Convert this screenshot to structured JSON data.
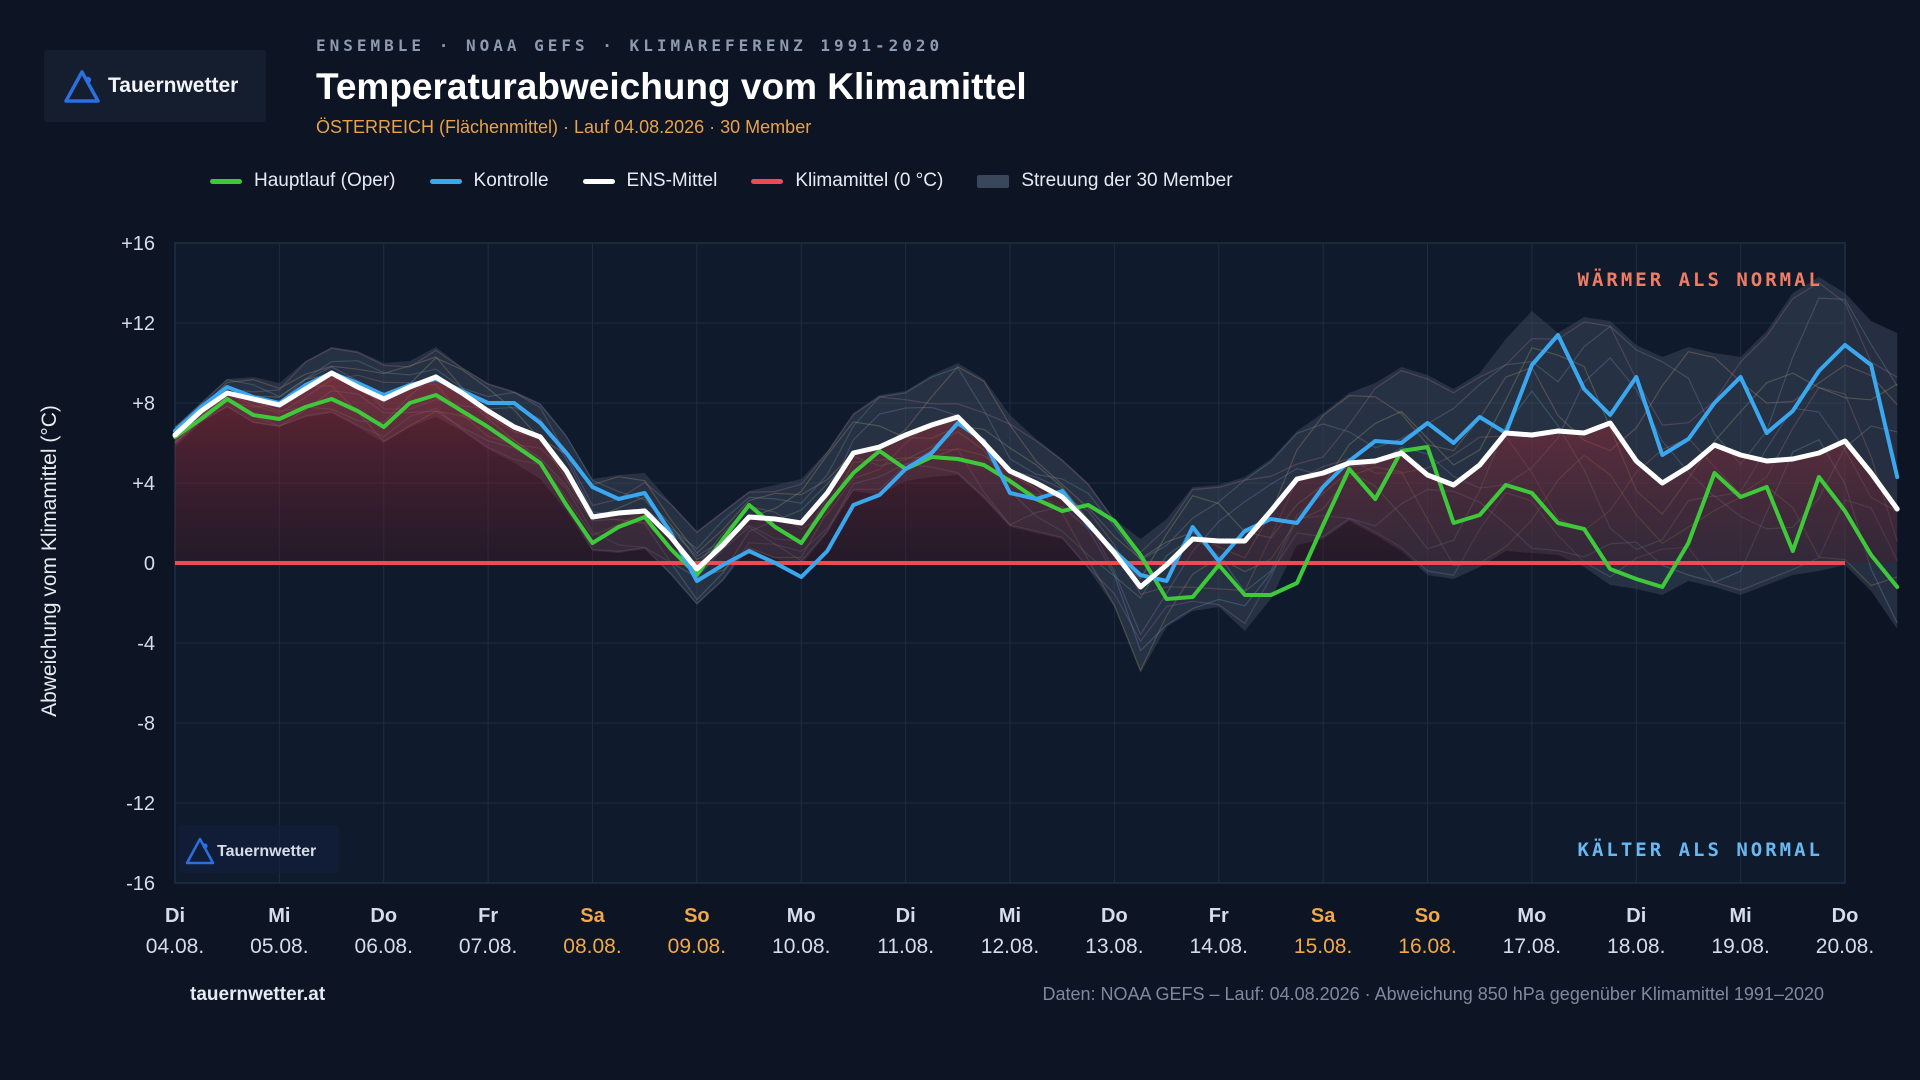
{
  "brand": {
    "name": "Tauernwetter",
    "url": "tauernwetter.at"
  },
  "header": {
    "kicker": "ENSEMBLE · NOAA GEFS · KLIMAREFERENZ 1991-2020",
    "title": "Temperaturabweichung vom Klimamittel",
    "meta": "ÖSTERREICH (Flächenmittel) · Lauf 04.08.2026 · 30 Member"
  },
  "legend": [
    {
      "label": "Hauptlauf (Oper)",
      "color": "#3ec93a"
    },
    {
      "label": "Kontrolle",
      "color": "#3aa7ee"
    },
    {
      "label": "ENS-Mittel",
      "color": "#ffffff"
    },
    {
      "label": "Klimamittel (0 °C)",
      "color": "#ee4a4f"
    },
    {
      "label": "Streuung der 30 Member",
      "color": "#3a465a"
    }
  ],
  "annotations": {
    "warm": "WÄRMER ALS NORMAL",
    "cold": "KÄLTER ALS NORMAL"
  },
  "footer": {
    "source": "Daten: NOAA GEFS – Lauf: 04.08.2026 · Abweichung 850 hPa gegenüber Klimamittel 1991–2020"
  },
  "chart_data": {
    "type": "line",
    "ylabel": "Abweichung vom Klimamittel (°C)",
    "ylim": [
      -16,
      16
    ],
    "yticks": [
      "+16",
      "+12",
      "+8",
      "+4",
      "0",
      "-4",
      "-8",
      "-12",
      "-16"
    ],
    "ytick_values": [
      16,
      12,
      8,
      4,
      0,
      -4,
      -8,
      -12,
      -16
    ],
    "days": [
      {
        "wd": "Di",
        "date": "04.08.",
        "weekend": false
      },
      {
        "wd": "Mi",
        "date": "05.08.",
        "weekend": false
      },
      {
        "wd": "Do",
        "date": "06.08.",
        "weekend": false
      },
      {
        "wd": "Fr",
        "date": "07.08.",
        "weekend": false
      },
      {
        "wd": "Sa",
        "date": "08.08.",
        "weekend": true
      },
      {
        "wd": "So",
        "date": "09.08.",
        "weekend": true
      },
      {
        "wd": "Mo",
        "date": "10.08.",
        "weekend": false
      },
      {
        "wd": "Di",
        "date": "11.08.",
        "weekend": false
      },
      {
        "wd": "Mi",
        "date": "12.08.",
        "weekend": false
      },
      {
        "wd": "Do",
        "date": "13.08.",
        "weekend": false
      },
      {
        "wd": "Fr",
        "date": "14.08.",
        "weekend": false
      },
      {
        "wd": "Sa",
        "date": "15.08.",
        "weekend": true
      },
      {
        "wd": "So",
        "date": "16.08.",
        "weekend": true
      },
      {
        "wd": "Mo",
        "date": "17.08.",
        "weekend": false
      },
      {
        "wd": "Di",
        "date": "18.08.",
        "weekend": false
      },
      {
        "wd": "Mi",
        "date": "19.08.",
        "weekend": false
      },
      {
        "wd": "Do",
        "date": "20.08.",
        "weekend": false
      }
    ],
    "x_step_days": 0.25,
    "series": [
      {
        "name": "Hauptlauf (Oper)",
        "color": "#3ec93a",
        "width": 4,
        "values": [
          6.3,
          7.2,
          8.2,
          7.4,
          7.2,
          7.8,
          8.2,
          7.6,
          6.8,
          8.0,
          8.4,
          7.6,
          6.8,
          5.9,
          5.0,
          2.9,
          1.0,
          1.8,
          2.3,
          0.7,
          -0.6,
          1.2,
          2.9,
          1.8,
          1.0,
          2.9,
          4.5,
          5.6,
          4.7,
          5.3,
          5.2,
          4.9,
          4.1,
          3.2,
          2.6,
          2.9,
          2.1,
          0.4,
          -1.8,
          -1.7,
          -0.1,
          -1.6,
          -1.6,
          -1.0,
          1.9,
          4.7,
          3.2,
          5.6,
          5.8,
          2.0,
          2.4,
          3.9,
          3.5,
          2.0,
          1.7,
          -0.3,
          -0.8,
          -1.2,
          1.0,
          4.5,
          3.3,
          3.8,
          0.6,
          4.3,
          2.6,
          0.4,
          -1.2
        ]
      },
      {
        "name": "Kontrolle",
        "color": "#3aa7ee",
        "width": 4,
        "values": [
          6.6,
          7.8,
          8.8,
          8.3,
          8.0,
          8.9,
          9.5,
          9.0,
          8.4,
          8.9,
          9.2,
          8.6,
          8.0,
          8.0,
          7.0,
          5.5,
          3.8,
          3.2,
          3.5,
          1.5,
          -0.9,
          -0.1,
          0.6,
          0.0,
          -0.7,
          0.6,
          2.9,
          3.4,
          4.7,
          5.5,
          7.0,
          6.1,
          3.5,
          3.2,
          3.6,
          1.9,
          0.6,
          -0.6,
          -0.9,
          1.8,
          0.1,
          1.6,
          2.2,
          2.0,
          3.8,
          5.1,
          6.1,
          6.0,
          7.0,
          6.0,
          7.3,
          6.5,
          9.9,
          11.4,
          8.7,
          7.4,
          9.3,
          5.4,
          6.2,
          8.0,
          9.3,
          6.5,
          7.6,
          9.6,
          10.9,
          9.9,
          4.3
        ]
      },
      {
        "name": "ENS-Mittel",
        "color": "#ffffff",
        "width": 5,
        "values": [
          6.4,
          7.6,
          8.5,
          8.2,
          7.9,
          8.7,
          9.5,
          8.8,
          8.2,
          8.8,
          9.3,
          8.5,
          7.6,
          6.8,
          6.3,
          4.6,
          2.3,
          2.5,
          2.6,
          1.3,
          -0.3,
          0.9,
          2.3,
          2.2,
          2.0,
          3.5,
          5.5,
          5.8,
          6.4,
          6.9,
          7.3,
          6.0,
          4.6,
          4.0,
          3.3,
          2.0,
          0.5,
          -1.2,
          -0.1,
          1.2,
          1.1,
          1.1,
          2.6,
          4.2,
          4.5,
          5.0,
          5.1,
          5.5,
          4.4,
          3.9,
          4.9,
          6.5,
          6.4,
          6.6,
          6.5,
          7.0,
          5.1,
          4.0,
          4.8,
          5.9,
          5.4,
          5.1,
          5.2,
          5.5,
          6.1,
          4.5,
          2.7
        ]
      }
    ],
    "reference_line": {
      "name": "Klimamittel (0 °C)",
      "value": 0,
      "color": "#ee4a4f"
    },
    "spread_band": {
      "name": "Streuung der 30 Member",
      "upper": [
        6.8,
        8.0,
        9.2,
        9.3,
        9.0,
        10.1,
        10.8,
        10.6,
        10.0,
        10.1,
        10.8,
        9.8,
        9.0,
        8.6,
        8.0,
        6.4,
        4.2,
        4.4,
        4.5,
        3.0,
        1.6,
        2.6,
        3.6,
        3.9,
        4.2,
        5.6,
        7.5,
        8.4,
        8.6,
        9.4,
        10.0,
        9.2,
        7.4,
        6.2,
        5.2,
        4.0,
        2.2,
        1.2,
        2.2,
        3.8,
        3.9,
        4.3,
        5.2,
        6.6,
        7.5,
        8.5,
        9.0,
        9.8,
        9.4,
        8.7,
        9.5,
        11.2,
        12.6,
        11.5,
        12.3,
        12.1,
        10.9,
        10.3,
        10.8,
        10.5,
        10.3,
        11.6,
        13.5,
        14.3,
        13.5,
        12.1,
        11.5
      ],
      "lower": [
        5.8,
        7.0,
        7.8,
        7.0,
        6.8,
        7.3,
        7.5,
        6.8,
        6.0,
        6.8,
        7.3,
        6.6,
        5.7,
        5.0,
        4.2,
        2.6,
        0.6,
        0.5,
        0.7,
        -0.6,
        -2.1,
        -0.9,
        0.7,
        0.2,
        -0.1,
        1.5,
        3.6,
        3.4,
        4.1,
        4.3,
        4.4,
        3.2,
        1.8,
        1.5,
        1.2,
        -0.3,
        -2.2,
        -5.5,
        -3.2,
        -2.4,
        -2.2,
        -3.4,
        -1.8,
        0.9,
        1.2,
        2.1,
        1.4,
        0.6,
        -0.6,
        -0.8,
        -0.2,
        0.6,
        0.5,
        0.4,
        -0.2,
        -1.1,
        -1.3,
        -1.6,
        -0.9,
        -1.2,
        -1.6,
        -1.1,
        -0.6,
        -0.4,
        -0.1,
        -1.4,
        -3.3
      ]
    }
  }
}
